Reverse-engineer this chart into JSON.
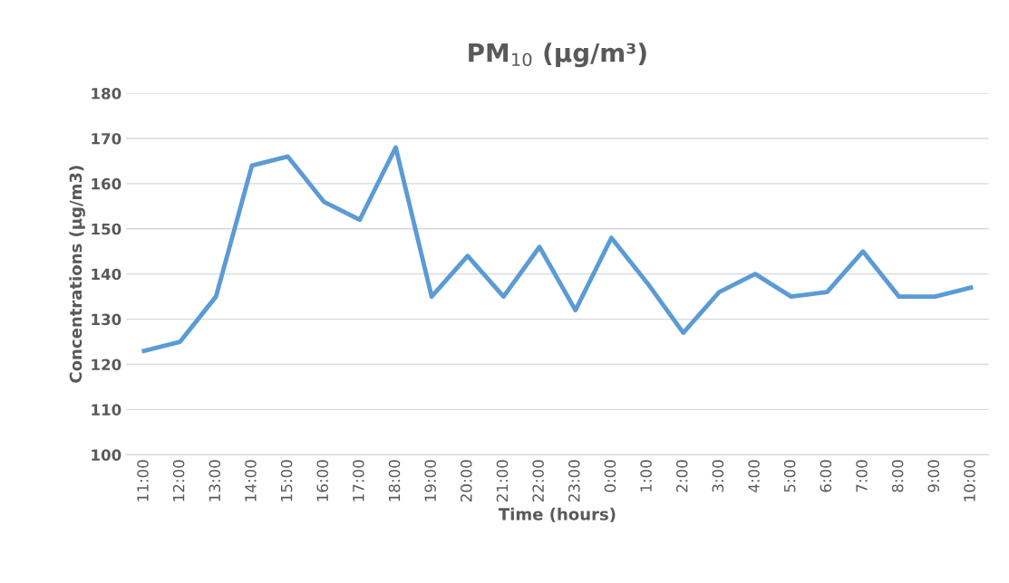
{
  "chart_data": {
    "type": "line",
    "title": "PM$_{10}$ (µg/m³)",
    "xlabel": "Time (hours)",
    "ylabel": "Concentrations (µg/m3)",
    "categories": [
      "11:00",
      "12:00",
      "13:00",
      "14:00",
      "15:00",
      "16:00",
      "17:00",
      "18:00",
      "19:00",
      "20:00",
      "21:00",
      "22:00",
      "23:00",
      "0:00",
      "1:00",
      "2:00",
      "3:00",
      "4:00",
      "5:00",
      "6:00",
      "7:00",
      "8:00",
      "9:00",
      "10:00"
    ],
    "series": [
      {
        "color": "#5b9bd5",
        "values": [
          123,
          125,
          135,
          164,
          166,
          156,
          152,
          168,
          135,
          144,
          135,
          146,
          132,
          148,
          138,
          127,
          136,
          140,
          135,
          136,
          145,
          135,
          135,
          137
        ]
      }
    ],
    "ylim": [
      100,
      180
    ],
    "yticks": [
      100,
      110,
      120,
      130,
      140,
      150,
      160,
      170,
      180
    ],
    "grid": "y",
    "legend": false,
    "marker": "none",
    "line_style": "solid"
  }
}
